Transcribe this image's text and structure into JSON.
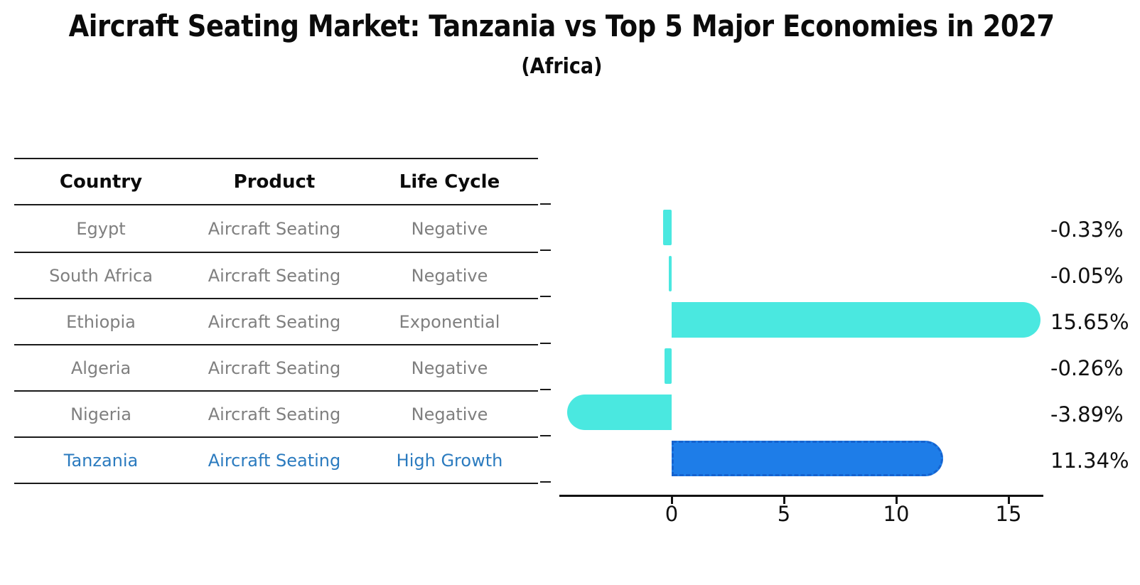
{
  "title": "Aircraft Seating Market: Tanzania vs Top 5 Major Economies in 2027",
  "subtitle": "(Africa)",
  "table": {
    "headers": [
      "Country",
      "Product",
      "Life Cycle"
    ],
    "rows": [
      {
        "country": "Egypt",
        "product": "Aircraft Seating",
        "life_cycle": "Negative",
        "highlight": false
      },
      {
        "country": "South Africa",
        "product": "Aircraft Seating",
        "life_cycle": "Negative",
        "highlight": false
      },
      {
        "country": "Ethiopia",
        "product": "Aircraft Seating",
        "life_cycle": "Exponential",
        "highlight": false
      },
      {
        "country": "Algeria",
        "product": "Aircraft Seating",
        "life_cycle": "Negative",
        "highlight": false
      },
      {
        "country": "Nigeria",
        "product": "Aircraft Seating",
        "life_cycle": "Negative",
        "highlight": false
      },
      {
        "country": "Tanzania",
        "product": "Aircraft Seating",
        "life_cycle": "High Growth",
        "highlight": true
      }
    ]
  },
  "chart_data": {
    "type": "bar",
    "orientation": "horizontal",
    "title": "Aircraft Seating Market: Tanzania vs Top 5 Major Economies in 2027",
    "subtitle": "(Africa)",
    "categories": [
      "Egypt",
      "South Africa",
      "Ethiopia",
      "Algeria",
      "Nigeria",
      "Tanzania"
    ],
    "values": [
      -0.33,
      -0.05,
      15.65,
      -0.26,
      -3.89,
      11.34
    ],
    "value_labels": [
      "-0.33%",
      "-0.05%",
      "15.65%",
      "-0.26%",
      "-3.89%",
      "11.34%"
    ],
    "highlight_index": 5,
    "x_ticks": [
      0,
      5,
      10,
      15
    ],
    "xlim": [
      -5,
      16.5
    ],
    "grid": false,
    "legend": "none",
    "colors": {
      "bar": "#4AE8E0",
      "highlight_bar": "#1E7DE8",
      "highlight_bar_border": "#1563CF",
      "highlight_text": "#2B7BBF",
      "row_text": "#7F7F7F",
      "axis": "#111111"
    }
  }
}
